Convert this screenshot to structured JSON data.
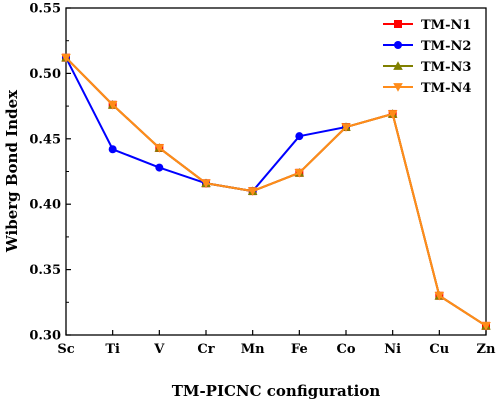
{
  "chart_data": {
    "type": "line",
    "xlabel": "TM-PICNC configuration",
    "ylabel": "Wiberg Bond Index",
    "categories": [
      "Sc",
      "Ti",
      "V",
      "Cr",
      "Mn",
      "Fe",
      "Co",
      "Ni",
      "Cu",
      "Zn"
    ],
    "ylim": [
      0.3,
      0.55
    ],
    "yticks": [
      "0.30",
      "0.35",
      "0.40",
      "0.45",
      "0.50",
      "0.55"
    ],
    "grid": false,
    "legend_position": "top-right",
    "series": [
      {
        "name": "TM-N1",
        "color": "#ff0000",
        "marker": "square",
        "values": [
          0.512,
          0.476,
          0.443,
          0.416,
          0.41,
          0.424,
          0.459,
          0.469,
          0.33,
          0.307
        ]
      },
      {
        "name": "TM-N2",
        "color": "#0000ff",
        "marker": "circle",
        "values": [
          0.512,
          0.442,
          0.428,
          0.416,
          0.41,
          0.452,
          0.459,
          null,
          null,
          null
        ]
      },
      {
        "name": "TM-N3",
        "color": "#808000",
        "marker": "triangle-up",
        "values": [
          0.512,
          0.476,
          0.443,
          0.416,
          0.41,
          0.424,
          0.459,
          0.469,
          0.33,
          0.307
        ]
      },
      {
        "name": "TM-N4",
        "color": "#ff8c1a",
        "marker": "triangle-down",
        "values": [
          0.512,
          0.476,
          0.443,
          0.416,
          0.41,
          0.424,
          0.459,
          0.469,
          0.33,
          0.307
        ]
      }
    ]
  }
}
